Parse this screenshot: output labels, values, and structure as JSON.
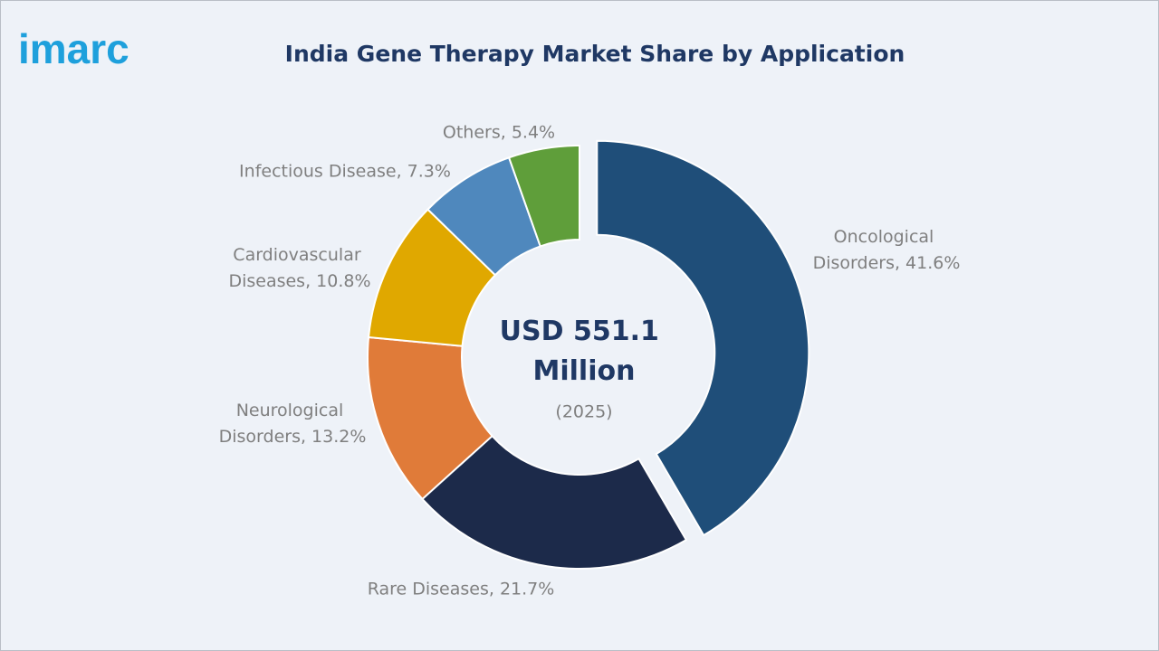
{
  "logo": "imarc",
  "chart_data": {
    "type": "donut",
    "title": "India Gene Therapy Market Share by Application",
    "center_title": "USD 551.1 Million",
    "center_subtitle": "(2025)",
    "values": [
      41.6,
      21.7,
      13.2,
      10.8,
      7.3,
      5.4
    ],
    "value_labels": [
      "Oncological Disorders, 41.6%",
      "Rare Diseases, 21.7%",
      "Neurological Disorders, 13.2%",
      "Cardiovascular Diseases, 10.8%",
      "Infectious Disease, 7.3%",
      "Others, 5.4%"
    ],
    "colors": [
      "#1f4e79",
      "#1c2a4a",
      "#e07b39",
      "#e0a800",
      "#4f88bd",
      "#5f9e3a"
    ]
  }
}
